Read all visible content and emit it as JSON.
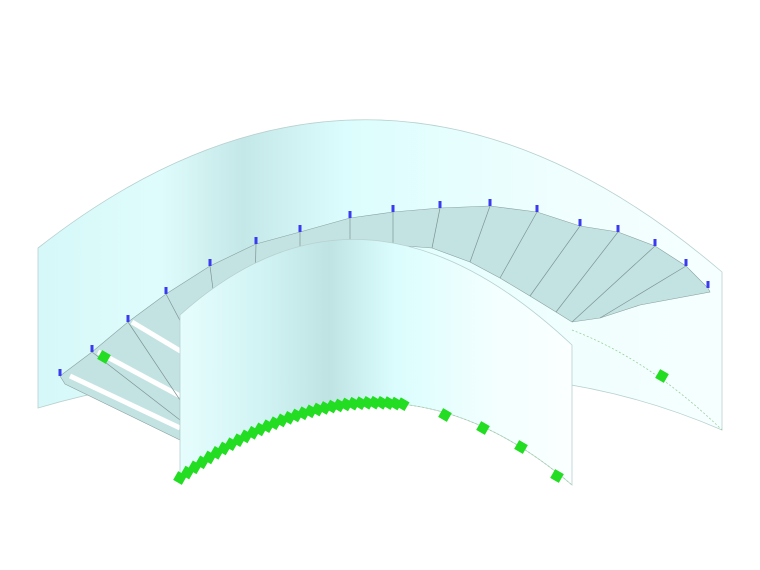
{
  "view": {
    "background": "#ffffff",
    "wall_color": "#d8fbfb",
    "wall_shade": "#bfe6e6",
    "tread_color": "#c3e3e2",
    "edge_color": "#8aa0a0",
    "support_color": "#22dd22",
    "node_marker_color": "#3a3aee"
  }
}
